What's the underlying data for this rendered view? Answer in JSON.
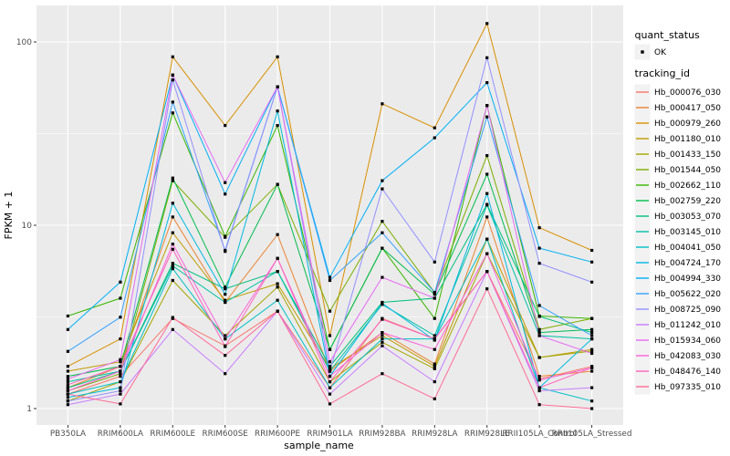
{
  "chart_data": {
    "type": "line",
    "title": "",
    "xlabel": "sample_name",
    "ylabel": "FPKM + 1",
    "y_scale": "log10",
    "y_ticks": [
      "1",
      "10",
      "100"
    ],
    "y_minor_breaks": [
      3.1623,
      31.623
    ],
    "ylim_log10": [
      -0.105,
      2.2
    ],
    "grid": true,
    "legend_position": "right",
    "panel_bg": "#EBEBEB",
    "grid_color": "#FFFFFF",
    "key_bg": "#F2F2F2",
    "axis_text_color": "#4D4D4D",
    "point_color": "#000000",
    "categories": [
      "PB350LA",
      "RRIM600LA",
      "RRIM600LE",
      "RRIM600SE",
      "RRIM600PE",
      "RRIM901LA",
      "RRIM928BA",
      "RRIM928LA",
      "RRIM928LE",
      "RRII105LA_Control",
      "RRII105LA_Stressed"
    ],
    "legend_quant": {
      "title": "quant_status",
      "items": [
        {
          "label": "OK",
          "marker": "point",
          "color": "#000000"
        }
      ]
    },
    "legend_tracking": {
      "title": "tracking_id"
    },
    "series": [
      {
        "name": "Hb_000076_030",
        "color": "#F8766D",
        "values": [
          1.2,
          1.5,
          3.1,
          2.2,
          3.4,
          1.3,
          3.1,
          2.4,
          5.6,
          1.45,
          1.7
        ]
      },
      {
        "name": "Hb_000417_050",
        "color": "#EA8331",
        "values": [
          1.3,
          1.7,
          11.1,
          3.8,
          8.9,
          1.6,
          2.6,
          1.75,
          11.1,
          1.5,
          1.6
        ]
      },
      {
        "name": "Hb_000979_260",
        "color": "#D89000",
        "values": [
          1.7,
          2.4,
          83,
          35,
          83,
          2.5,
          46,
          34,
          126,
          9.7,
          7.3
        ]
      },
      {
        "name": "Hb_001180_010",
        "color": "#C09B00",
        "values": [
          1.6,
          1.8,
          9.1,
          3.9,
          4.8,
          1.65,
          2.5,
          1.7,
          8.4,
          1.9,
          2.1
        ]
      },
      {
        "name": "Hb_001433_150",
        "color": "#A3A500",
        "values": [
          1.1,
          1.4,
          5.0,
          2.5,
          4.6,
          1.4,
          2.3,
          1.65,
          7.0,
          1.9,
          2.06
        ]
      },
      {
        "name": "Hb_001544_050",
        "color": "#7CAE00",
        "values": [
          1.25,
          1.55,
          17.5,
          8.6,
          16.7,
          3.4,
          10.5,
          4.3,
          24,
          2.7,
          3.1
        ]
      },
      {
        "name": "Hb_002662_110",
        "color": "#39B600",
        "values": [
          3.2,
          4.0,
          41,
          8.7,
          35,
          2.1,
          7.5,
          3.1,
          45,
          3.2,
          3.1
        ]
      },
      {
        "name": "Hb_002759_220",
        "color": "#00BB4E",
        "values": [
          1.5,
          1.7,
          18.1,
          4.6,
          16.7,
          2.1,
          7.5,
          4.2,
          19,
          2.6,
          2.7
        ]
      },
      {
        "name": "Hb_003053_070",
        "color": "#00BF7D",
        "values": [
          1.3,
          1.6,
          6.2,
          4.5,
          5.6,
          1.7,
          3.8,
          4.0,
          13,
          3.18,
          2.6
        ]
      },
      {
        "name": "Hb_003145_010",
        "color": "#00C1A3",
        "values": [
          1.4,
          1.6,
          6.0,
          3.8,
          5.6,
          1.6,
          3.7,
          2.5,
          12.9,
          2.5,
          2.4
        ]
      },
      {
        "name": "Hb_004041_050",
        "color": "#00BFC4",
        "values": [
          1.2,
          1.4,
          5.8,
          2.4,
          3.9,
          1.3,
          2.4,
          2.4,
          8.4,
          1.3,
          1.1
        ]
      },
      {
        "name": "Hb_004724_170",
        "color": "#00BAE0",
        "values": [
          1.15,
          1.3,
          13.2,
          4.2,
          42,
          1.5,
          3.75,
          2.36,
          14.9,
          1.3,
          2.4
        ]
      },
      {
        "name": "Hb_004994_330",
        "color": "#00B0F6",
        "values": [
          2.7,
          4.9,
          66,
          14.8,
          57,
          5.2,
          17.5,
          30,
          60,
          7.5,
          6.3
        ]
      },
      {
        "name": "Hb_005622_020",
        "color": "#35A2FF",
        "values": [
          2.05,
          3.15,
          47,
          7.3,
          57,
          5.0,
          9.1,
          4.3,
          39,
          3.65,
          2.5
        ]
      },
      {
        "name": "Hb_008725_090",
        "color": "#9590FF",
        "values": [
          1.1,
          1.25,
          62,
          7.2,
          57,
          1.6,
          15.8,
          6.3,
          82,
          6.2,
          4.9
        ]
      },
      {
        "name": "Hb_011242_010",
        "color": "#C77CFF",
        "values": [
          1.05,
          1.2,
          2.7,
          1.55,
          3.4,
          1.2,
          2.2,
          1.4,
          5.6,
          1.25,
          1.3
        ]
      },
      {
        "name": "Hb_015934_060",
        "color": "#E76BF3",
        "values": [
          1.45,
          1.85,
          66,
          17.1,
          57,
          1.8,
          5.2,
          4.0,
          45,
          2.5,
          2.0
        ]
      },
      {
        "name": "Hb_042083_030",
        "color": "#FA62DB",
        "values": [
          1.25,
          1.6,
          7.9,
          2.4,
          6.6,
          1.5,
          2.6,
          2.1,
          7.0,
          1.43,
          1.67
        ]
      },
      {
        "name": "Hb_048476_140",
        "color": "#FF62BC",
        "values": [
          1.35,
          1.7,
          7.4,
          2.18,
          6.6,
          1.4,
          3.07,
          2.4,
          5.6,
          1.3,
          1.67
        ]
      },
      {
        "name": "Hb_097335_010",
        "color": "#FF6A98",
        "values": [
          1.2,
          1.06,
          3.14,
          1.95,
          3.4,
          1.06,
          1.55,
          1.13,
          4.5,
          1.05,
          1.0
        ]
      }
    ]
  }
}
